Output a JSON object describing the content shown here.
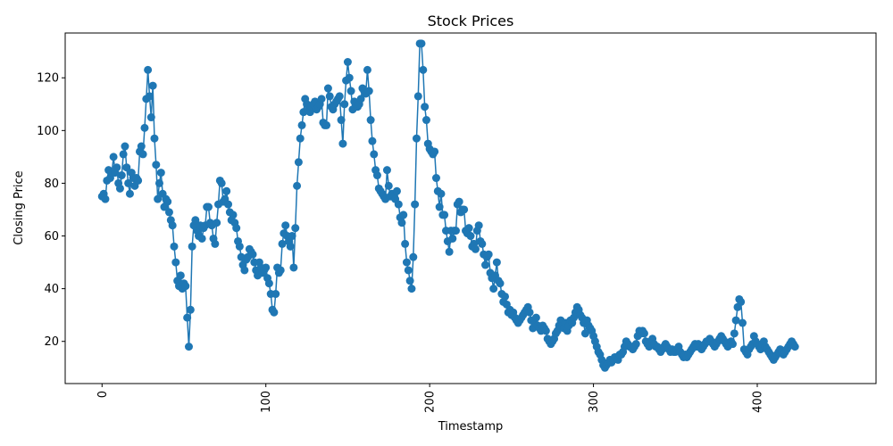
{
  "chart_data": {
    "type": "line",
    "title": "Stock Prices",
    "xlabel": "Timestamp",
    "ylabel": "Closing Price",
    "xlim": [
      -22.5,
      472.5
    ],
    "ylim": [
      4,
      137
    ],
    "xticks": [
      0,
      100,
      200,
      300,
      400
    ],
    "yticks": [
      20,
      40,
      60,
      80,
      100,
      120
    ],
    "xtick_rotation": 90,
    "grid": false,
    "legend": "none",
    "markers": true,
    "series_color": "#1f77b4",
    "series": [
      {
        "values": [
          75,
          76,
          74,
          81,
          85,
          82,
          84,
          90,
          84,
          86,
          80,
          78,
          83,
          91,
          94,
          86,
          80,
          76,
          84,
          82,
          79,
          82,
          81,
          92,
          94,
          91,
          101,
          112,
          123,
          113,
          105,
          117,
          97,
          87,
          74,
          80,
          84,
          76,
          71,
          74,
          73,
          69,
          66,
          64,
          56,
          50,
          43,
          41,
          45,
          40,
          42,
          41,
          29,
          18,
          32,
          56,
          64,
          66,
          62,
          60,
          64,
          59,
          63,
          64,
          71,
          71,
          65,
          64,
          59,
          57,
          65,
          72,
          81,
          80,
          73,
          74,
          77,
          72,
          69,
          66,
          68,
          65,
          63,
          58,
          56,
          52,
          49,
          47,
          51,
          52,
          55,
          54,
          53,
          50,
          47,
          45,
          50,
          48,
          46,
          47,
          48,
          44,
          42,
          38,
          32,
          31,
          38,
          48,
          46,
          47,
          57,
          61,
          64,
          60,
          58,
          56,
          60,
          48,
          63,
          79,
          88,
          97,
          102,
          107,
          112,
          110,
          108,
          107,
          109,
          110,
          111,
          108,
          109,
          110,
          112,
          103,
          102,
          102,
          116,
          113,
          109,
          108,
          110,
          111,
          112,
          113,
          104,
          95,
          110,
          119,
          126,
          120,
          115,
          108,
          111,
          110,
          109,
          110,
          112,
          116,
          115,
          114,
          123,
          115,
          104,
          96,
          91,
          85,
          83,
          78,
          77,
          76,
          75,
          74,
          85,
          79,
          75,
          76,
          75,
          74,
          77,
          72,
          67,
          65,
          68,
          57,
          50,
          47,
          43,
          40,
          52,
          72,
          97,
          113,
          133,
          133,
          123,
          109,
          104,
          95,
          93,
          92,
          91,
          92,
          82,
          77,
          71,
          76,
          68,
          68,
          62,
          58,
          54,
          62,
          59,
          62,
          62,
          72,
          73,
          69,
          70,
          70,
          62,
          61,
          63,
          60,
          56,
          57,
          55,
          62,
          64,
          58,
          57,
          53,
          49,
          52,
          53,
          46,
          44,
          40,
          45,
          50,
          43,
          42,
          38,
          35,
          37,
          34,
          31,
          32,
          30,
          31,
          29,
          28,
          27,
          28,
          29,
          30,
          31,
          32,
          33,
          31,
          28,
          25,
          27,
          29,
          26,
          25,
          24,
          26,
          25,
          24,
          21,
          20,
          19,
          20,
          21,
          23,
          24,
          26,
          28,
          26,
          25,
          27,
          24,
          26,
          28,
          27,
          29,
          31,
          33,
          32,
          30,
          29,
          27,
          23,
          28,
          26,
          25,
          24,
          22,
          20,
          18,
          16,
          15,
          13,
          11,
          10,
          11,
          12,
          13,
          12,
          13,
          14,
          14,
          13,
          15,
          15,
          16,
          18,
          20,
          19,
          18,
          18,
          17,
          18,
          19,
          22,
          24,
          23,
          24,
          23,
          20,
          19,
          18,
          20,
          21,
          19,
          18,
          18,
          17,
          16,
          17,
          18,
          19,
          18,
          17,
          16,
          17,
          16,
          16,
          17,
          18,
          16,
          15,
          14,
          15,
          14,
          15,
          16,
          17,
          18,
          19,
          18,
          19,
          18,
          17,
          18,
          19,
          20,
          20,
          21,
          20,
          19,
          18,
          19,
          20,
          21,
          22,
          21,
          20,
          19,
          18,
          19,
          20,
          19,
          23,
          28,
          33,
          36,
          35,
          27,
          17,
          16,
          15,
          17,
          18,
          19,
          22,
          20,
          19,
          18,
          17,
          19,
          20,
          18,
          17,
          16,
          15,
          14,
          13,
          14,
          15,
          16,
          17,
          16,
          15,
          16,
          17,
          18,
          19,
          20,
          19,
          18
        ]
      }
    ]
  }
}
